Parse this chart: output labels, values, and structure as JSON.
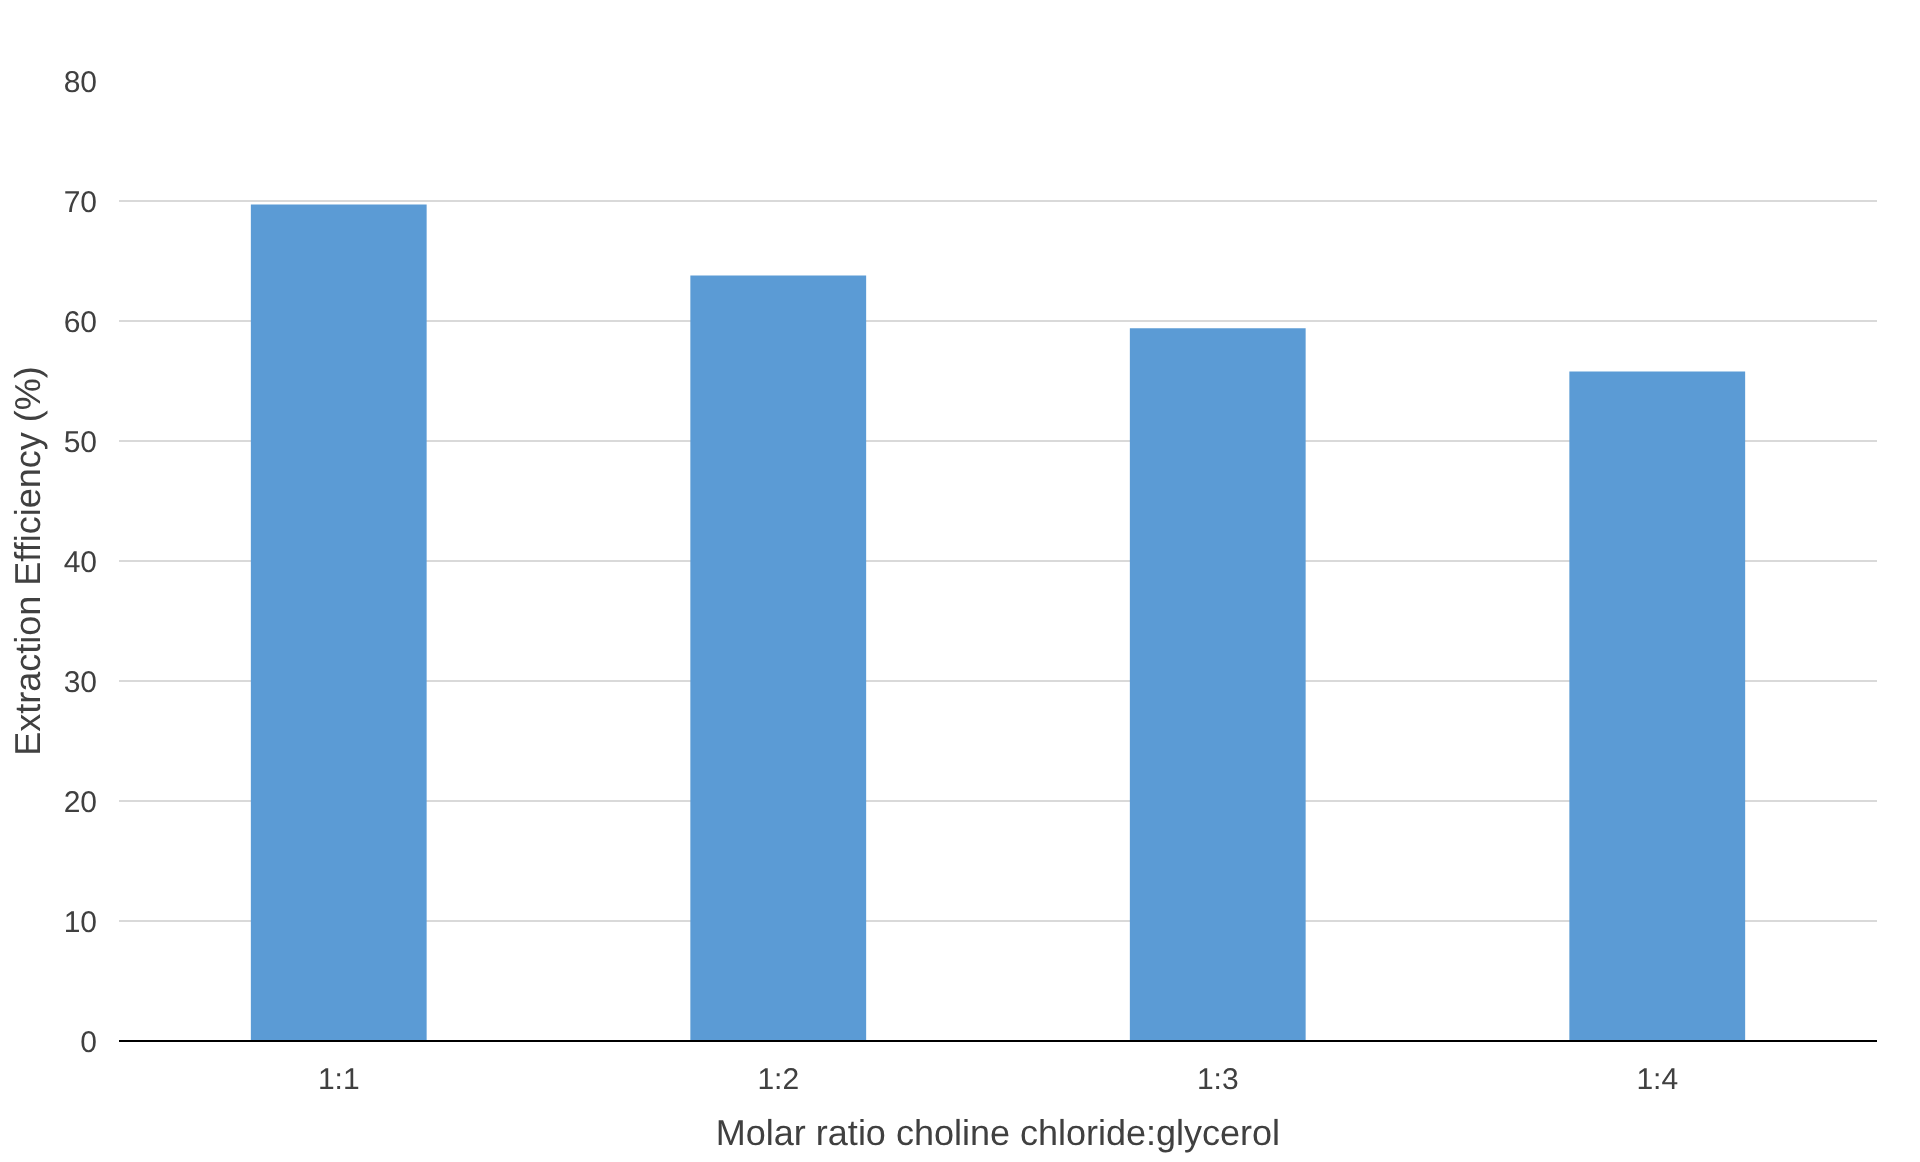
{
  "chart_data": {
    "type": "bar",
    "xlabel": "Molar ratio choline chloride:glycerol",
    "ylabel": "Extraction Efficiency (%)",
    "categories": [
      "1:1",
      "1:2",
      "1:3",
      "1:4"
    ],
    "values": [
      69.7,
      63.8,
      59.4,
      55.8
    ],
    "color": "#5b9bd5",
    "ylim": [
      0,
      80
    ],
    "yticks": [
      0,
      10,
      20,
      30,
      40,
      50,
      60,
      70,
      80
    ],
    "grid": "y"
  }
}
